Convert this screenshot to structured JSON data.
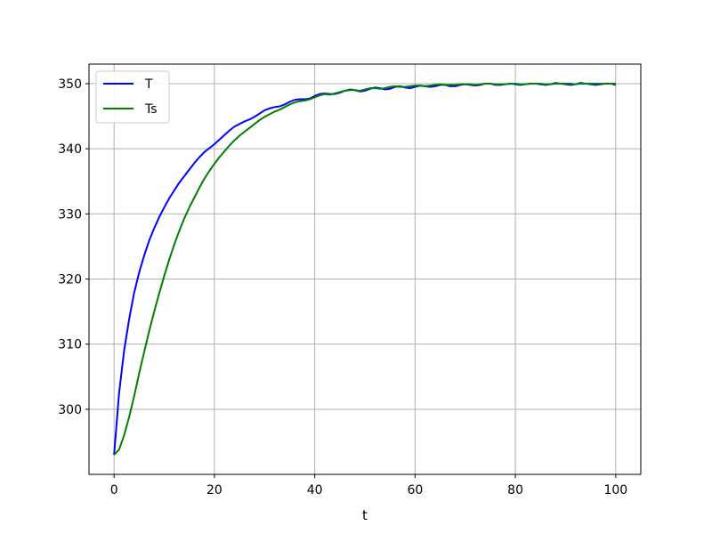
{
  "chart_data": {
    "type": "line",
    "title": "",
    "xlabel": "t",
    "ylabel": "",
    "xlim": [
      -5,
      105
    ],
    "ylim": [
      290,
      353
    ],
    "xticks": [
      0,
      20,
      40,
      60,
      80,
      100
    ],
    "yticks": [
      300,
      310,
      320,
      330,
      340,
      350
    ],
    "grid": true,
    "legend_position": "top-left",
    "series": [
      {
        "name": "T",
        "color": "#0000ff",
        "x": [
          0,
          1,
          2,
          3,
          4,
          5,
          6,
          7,
          8,
          9,
          10,
          11,
          12,
          13,
          14,
          15,
          16,
          17,
          18,
          19,
          20,
          21,
          22,
          23,
          24,
          25,
          26,
          27,
          28,
          29,
          30,
          31,
          32,
          33,
          34,
          35,
          36,
          37,
          38,
          39,
          40,
          41,
          42,
          43,
          44,
          45,
          46,
          47,
          48,
          49,
          50,
          51,
          52,
          53,
          54,
          55,
          56,
          57,
          58,
          59,
          60,
          61,
          62,
          63,
          64,
          65,
          66,
          67,
          68,
          69,
          70,
          71,
          72,
          73,
          74,
          75,
          76,
          77,
          78,
          79,
          80,
          81,
          82,
          83,
          84,
          85,
          86,
          87,
          88,
          89,
          90,
          91,
          92,
          93,
          94,
          95,
          96,
          97,
          98,
          99,
          100
        ],
        "y": [
          293,
          302.5,
          309,
          313.8,
          317.9,
          321,
          323.6,
          325.9,
          327.8,
          329.5,
          331,
          332.4,
          333.6,
          334.8,
          335.8,
          336.8,
          337.8,
          338.7,
          339.5,
          340.1,
          340.7,
          341.4,
          342.1,
          342.8,
          343.4,
          343.8,
          344.2,
          344.5,
          344.9,
          345.4,
          345.9,
          346.2,
          346.4,
          346.5,
          346.8,
          347.2,
          347.5,
          347.6,
          347.6,
          347.7,
          348.1,
          348.4,
          348.5,
          348.4,
          348.4,
          348.6,
          348.9,
          349.1,
          349.0,
          348.8,
          348.9,
          349.2,
          349.4,
          349.3,
          349.1,
          349.2,
          349.5,
          349.6,
          349.4,
          349.3,
          349.5,
          349.7,
          349.6,
          349.5,
          349.6,
          349.8,
          349.8,
          349.6,
          349.6,
          349.8,
          349.9,
          349.8,
          349.7,
          349.8,
          350.0,
          350.0,
          349.8,
          349.8,
          349.9,
          350.0,
          349.9,
          349.8,
          349.9,
          350.0,
          350.0,
          349.9,
          349.8,
          349.9,
          350.1,
          350.0,
          349.9,
          349.8,
          349.9,
          350.1,
          350.0,
          349.9,
          349.8,
          349.9,
          350.0,
          350.0,
          349.8
        ]
      },
      {
        "name": "Ts",
        "color": "#008000",
        "x": [
          0,
          1,
          2,
          3,
          4,
          5,
          6,
          7,
          8,
          9,
          10,
          11,
          12,
          13,
          14,
          15,
          16,
          17,
          18,
          19,
          20,
          21,
          22,
          23,
          24,
          25,
          26,
          27,
          28,
          29,
          30,
          31,
          32,
          33,
          34,
          35,
          36,
          37,
          38,
          39,
          40,
          41,
          42,
          43,
          44,
          45,
          46,
          47,
          48,
          49,
          50,
          51,
          52,
          53,
          54,
          55,
          56,
          57,
          58,
          59,
          60,
          61,
          62,
          63,
          64,
          65,
          66,
          67,
          68,
          69,
          70,
          71,
          72,
          73,
          74,
          75,
          76,
          77,
          78,
          79,
          80,
          81,
          82,
          83,
          84,
          85,
          86,
          87,
          88,
          89,
          90,
          91,
          92,
          93,
          94,
          95,
          96,
          97,
          98,
          99,
          100
        ],
        "y": [
          293,
          293.8,
          296,
          298.8,
          302,
          305.5,
          308.8,
          312,
          315,
          317.8,
          320.5,
          323,
          325.3,
          327.4,
          329.3,
          331,
          332.5,
          334,
          335.4,
          336.6,
          337.7,
          338.7,
          339.6,
          340.5,
          341.3,
          342,
          342.6,
          343.2,
          343.8,
          344.4,
          344.9,
          345.3,
          345.7,
          346,
          346.4,
          346.8,
          347.1,
          347.3,
          347.4,
          347.6,
          347.9,
          348.2,
          348.4,
          348.3,
          348.5,
          348.7,
          348.9,
          349.0,
          349.0,
          348.9,
          349.1,
          349.3,
          349.3,
          349.2,
          349.3,
          349.5,
          349.6,
          349.5,
          349.5,
          349.6,
          349.7,
          349.7,
          349.6,
          349.7,
          349.8,
          349.9,
          349.8,
          349.8,
          349.8,
          349.9,
          349.9,
          349.9,
          349.8,
          349.9,
          350,
          350,
          349.9,
          349.9,
          349.9,
          350,
          350,
          349.9,
          349.9,
          350,
          350,
          350,
          349.9,
          349.9,
          350,
          350,
          350,
          350,
          349.9,
          350,
          350,
          350,
          350,
          350,
          350,
          350,
          350
        ]
      }
    ]
  }
}
